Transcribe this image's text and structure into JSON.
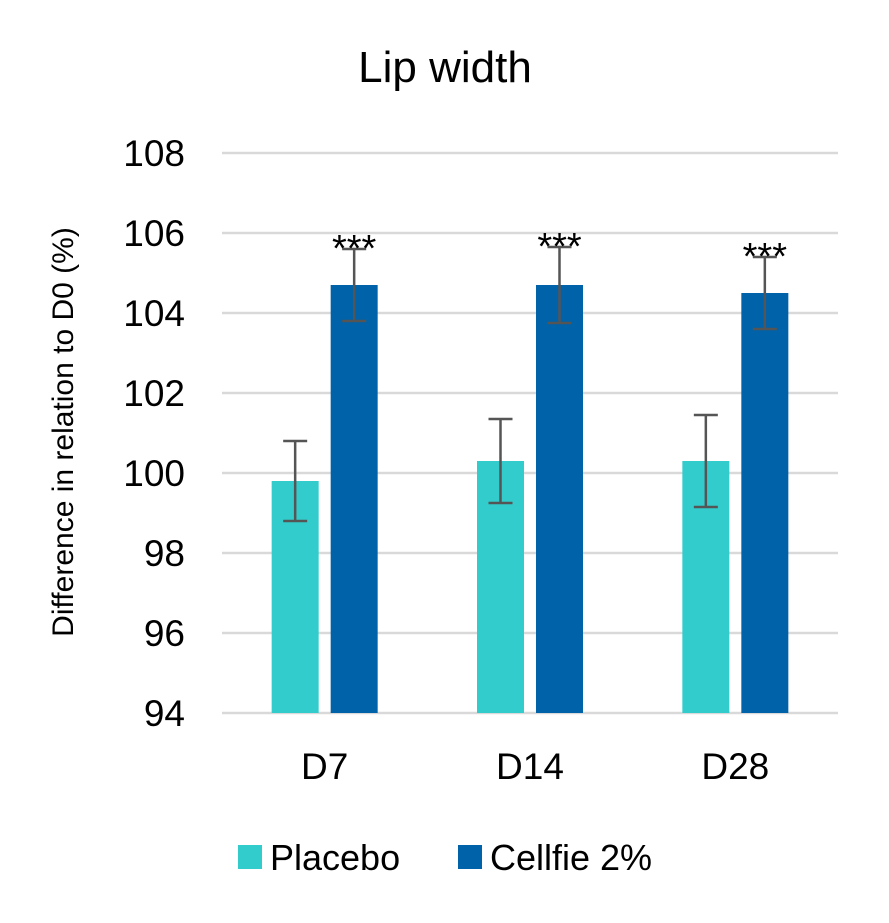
{
  "chart_data": {
    "type": "bar",
    "title": "Lip width",
    "xlabel": "",
    "ylabel": "Difference in relation to D0 (%)",
    "ylim": [
      94,
      108
    ],
    "yticks": [
      94,
      96,
      98,
      100,
      102,
      104,
      106,
      108
    ],
    "grid": true,
    "categories": [
      "D7",
      "D14",
      "D28"
    ],
    "series": [
      {
        "name": "Placebo",
        "color": "#33cccc",
        "values": [
          99.8,
          100.3,
          100.3
        ],
        "errors": [
          1.0,
          1.05,
          1.15
        ],
        "annotations": [
          "",
          "",
          ""
        ]
      },
      {
        "name": "Cellfie 2%",
        "color": "#0062a8",
        "values": [
          104.7,
          104.7,
          104.5
        ],
        "errors": [
          0.9,
          0.95,
          0.9
        ],
        "annotations": [
          "***",
          "***",
          "***"
        ]
      }
    ],
    "legend_position": "bottom"
  }
}
